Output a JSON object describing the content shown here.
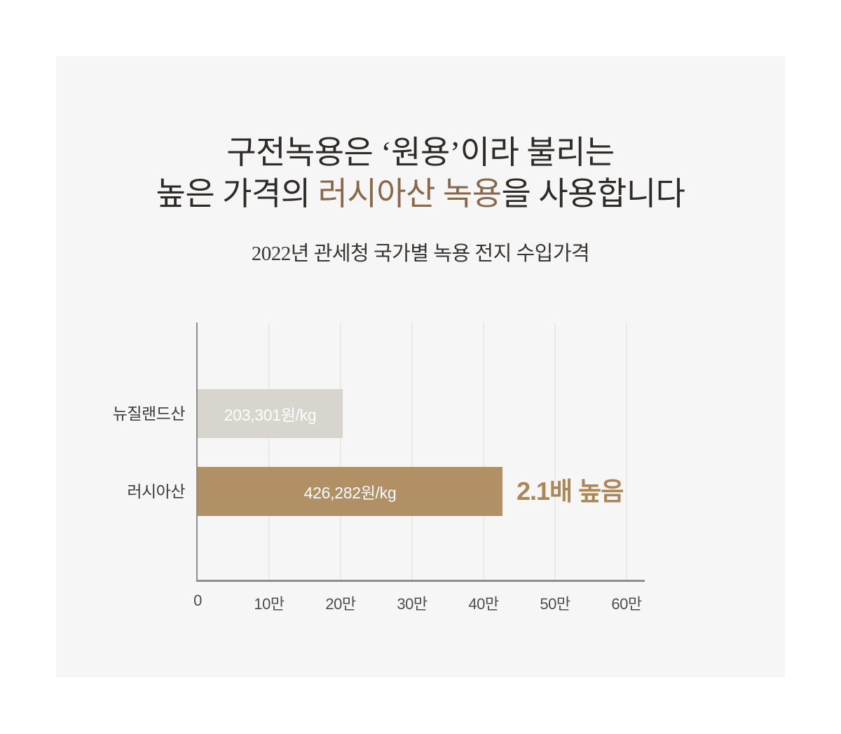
{
  "page": {
    "background": "#ffffff",
    "panel_background": "#f6f6f6"
  },
  "headline": {
    "line1": "구전녹용은 ‘원용’이라 불리는",
    "line2_prefix": "높은 가격의 ",
    "line2_highlight": "러시아산 녹용",
    "line2_suffix": "을 사용합니다",
    "text_color": "#2e2b27",
    "highlight_color": "#8a684a"
  },
  "chart_data": {
    "type": "bar",
    "orientation": "horizontal",
    "title": "2022년 관세청 국가별 녹용 전지 수입가격",
    "categories": [
      "뉴질랜드산",
      "러시아산"
    ],
    "values": [
      203301,
      426282
    ],
    "value_labels": [
      "203,301원/kg",
      "426,282원/kg"
    ],
    "bar_colors": [
      "#d8d5cf",
      "#b29066"
    ],
    "unit": "원/kg",
    "xlim": [
      0,
      600000
    ],
    "x_ticks": [
      0,
      100000,
      200000,
      300000,
      400000,
      500000,
      600000
    ],
    "x_tick_labels": [
      "0",
      "10만",
      "20만",
      "30만",
      "40만",
      "50만",
      "60만"
    ],
    "grid": true,
    "gridline_color": "#eceae7",
    "axis_color": "#8f8e8c",
    "annotation": {
      "text": "2.1배 높음",
      "target_category": "러시아산",
      "color": "#ac8755"
    }
  }
}
